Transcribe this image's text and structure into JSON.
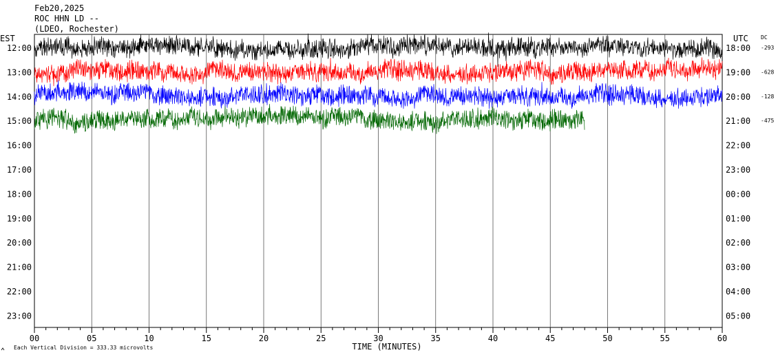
{
  "header": {
    "date": "Feb20,2025",
    "station": "ROC HHN LD --",
    "network": "(LDEO, Rochester)"
  },
  "chart_data": {
    "type": "line",
    "title": "Feb20,2025",
    "xlabel": "TIME (MINUTES)",
    "xlim": [
      0,
      60
    ],
    "x_ticks": [
      "00",
      "05",
      "10",
      "15",
      "20",
      "25",
      "30",
      "35",
      "40",
      "45",
      "50",
      "55",
      "60"
    ],
    "left_axis_label": "EST",
    "right_axis_label": "UTC",
    "dc_label": "DC",
    "rows_est": [
      "12:00",
      "13:00",
      "14:00",
      "15:00",
      "16:00",
      "17:00",
      "18:00",
      "19:00",
      "20:00",
      "21:00",
      "22:00",
      "23:00"
    ],
    "rows_utc": [
      "18:00",
      "19:00",
      "20:00",
      "21:00",
      "22:00",
      "23:00",
      "00:00",
      "01:00",
      "02:00",
      "03:00",
      "04:00",
      "05:00"
    ],
    "grid": true,
    "series": [
      {
        "row": 0,
        "dc_offset": "-293",
        "color": "#000000",
        "end_minute": 60,
        "amplitude": 14
      },
      {
        "row": 1,
        "dc_offset": "-628",
        "color": "#ff0000",
        "end_minute": 60,
        "amplitude": 14
      },
      {
        "row": 2,
        "dc_offset": "-128",
        "color": "#0000ff",
        "end_minute": 60,
        "amplitude": 14
      },
      {
        "row": 3,
        "dc_offset": "-475",
        "color": "#006600",
        "end_minute": 48,
        "amplitude": 14
      }
    ],
    "scale_note": "Each Vertical Division =  333.33 microvolts"
  }
}
